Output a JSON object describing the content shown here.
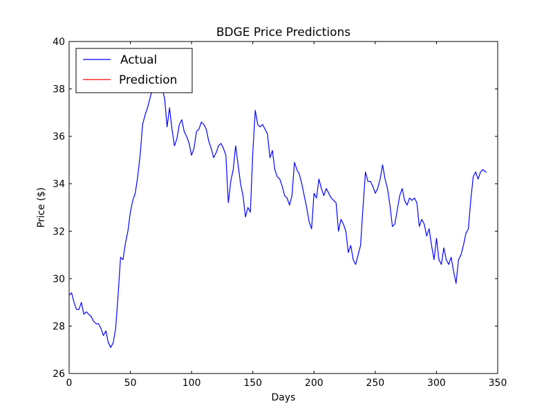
{
  "chart_data": {
    "type": "line",
    "title": "BDGE Price Predictions",
    "xlabel": "Days",
    "ylabel": "Price ($)",
    "xlim": [
      0,
      350
    ],
    "ylim": [
      26,
      40
    ],
    "xticks": [
      "0",
      "50",
      "100",
      "150",
      "200",
      "250",
      "300",
      "350"
    ],
    "yticks": [
      "26",
      "28",
      "30",
      "32",
      "34",
      "36",
      "38",
      "40"
    ],
    "grid": false,
    "legend_position": "top-left",
    "series": [
      {
        "name": "Actual",
        "color": "#0000ff",
        "x": [
          0,
          2,
          4,
          6,
          8,
          10,
          12,
          14,
          16,
          18,
          20,
          22,
          24,
          26,
          28,
          30,
          32,
          34,
          36,
          38,
          40,
          42,
          44,
          46,
          48,
          50,
          52,
          54,
          56,
          58,
          60,
          62,
          64,
          66,
          68,
          70,
          72,
          74,
          76,
          78,
          80,
          82,
          84,
          86,
          88,
          90,
          92,
          94,
          96,
          98,
          100,
          102,
          104,
          106,
          108,
          110,
          112,
          114,
          116,
          118,
          120,
          122,
          124,
          126,
          128,
          130,
          132,
          134,
          136,
          138,
          140,
          142,
          144,
          146,
          148,
          150,
          152,
          154,
          156,
          158,
          160,
          162,
          164,
          166,
          168,
          170,
          172,
          174,
          176,
          178,
          180,
          182,
          184,
          186,
          188,
          190,
          192,
          194,
          196,
          198,
          200,
          202,
          204,
          206,
          208,
          210,
          212,
          214,
          216,
          218,
          220,
          222,
          224,
          226,
          228,
          230,
          232,
          234,
          236,
          238,
          240,
          242,
          244,
          246,
          248,
          250,
          252,
          254,
          256,
          258,
          260,
          262,
          264,
          266,
          268,
          270,
          272,
          274,
          276,
          278,
          280,
          282,
          284,
          286,
          288,
          290,
          292,
          294,
          296,
          298,
          300,
          302,
          304,
          306,
          308,
          310,
          312,
          314,
          316,
          318,
          320,
          322,
          324,
          326,
          328,
          330,
          332,
          334,
          336,
          338,
          340,
          341
        ],
        "y": [
          29.3,
          29.4,
          29.0,
          28.7,
          28.7,
          29.0,
          28.5,
          28.6,
          28.5,
          28.4,
          28.2,
          28.1,
          28.1,
          27.9,
          27.6,
          27.8,
          27.3,
          27.1,
          27.3,
          27.9,
          29.3,
          30.9,
          30.8,
          31.5,
          32.0,
          32.8,
          33.3,
          33.6,
          34.3,
          35.2,
          36.5,
          36.9,
          37.2,
          37.6,
          38.0,
          38.1,
          37.9,
          37.9,
          38.0,
          37.6,
          36.4,
          37.2,
          36.3,
          35.6,
          35.9,
          36.5,
          36.7,
          36.2,
          36.0,
          35.7,
          35.2,
          35.5,
          36.2,
          36.3,
          36.6,
          36.5,
          36.3,
          35.8,
          35.5,
          35.1,
          35.3,
          35.6,
          35.7,
          35.5,
          35.2,
          33.2,
          34.1,
          34.6,
          35.6,
          34.8,
          34.0,
          33.5,
          32.6,
          33.0,
          32.8,
          35.3,
          37.1,
          36.5,
          36.4,
          36.5,
          36.3,
          36.1,
          35.1,
          35.4,
          34.6,
          34.3,
          34.2,
          33.9,
          33.5,
          33.4,
          33.1,
          33.5,
          34.9,
          34.6,
          34.4,
          34.0,
          33.5,
          33.0,
          32.4,
          32.1,
          33.6,
          33.4,
          34.2,
          33.8,
          33.5,
          33.8,
          33.6,
          33.4,
          33.3,
          33.2,
          32.0,
          32.5,
          32.3,
          32.0,
          31.1,
          31.4,
          30.8,
          30.6,
          31.0,
          31.4,
          33.0,
          34.5,
          34.1,
          34.1,
          33.9,
          33.6,
          33.8,
          34.2,
          34.8,
          34.2,
          33.8,
          33.1,
          32.2,
          32.3,
          32.9,
          33.5,
          33.8,
          33.3,
          33.1,
          33.4,
          33.3,
          33.4,
          33.2,
          32.2,
          32.5,
          32.3,
          31.8,
          32.1,
          31.4,
          30.8,
          31.7,
          30.8,
          30.6,
          31.3,
          30.8,
          30.6,
          30.9,
          30.3,
          29.8,
          30.8,
          31.0,
          31.4,
          31.9,
          32.1,
          33.3,
          34.3,
          34.5,
          34.2,
          34.5,
          34.6,
          34.5,
          34.5
        ]
      },
      {
        "name": "Prediction",
        "color": "#ff0000",
        "x": [],
        "y": []
      }
    ]
  }
}
